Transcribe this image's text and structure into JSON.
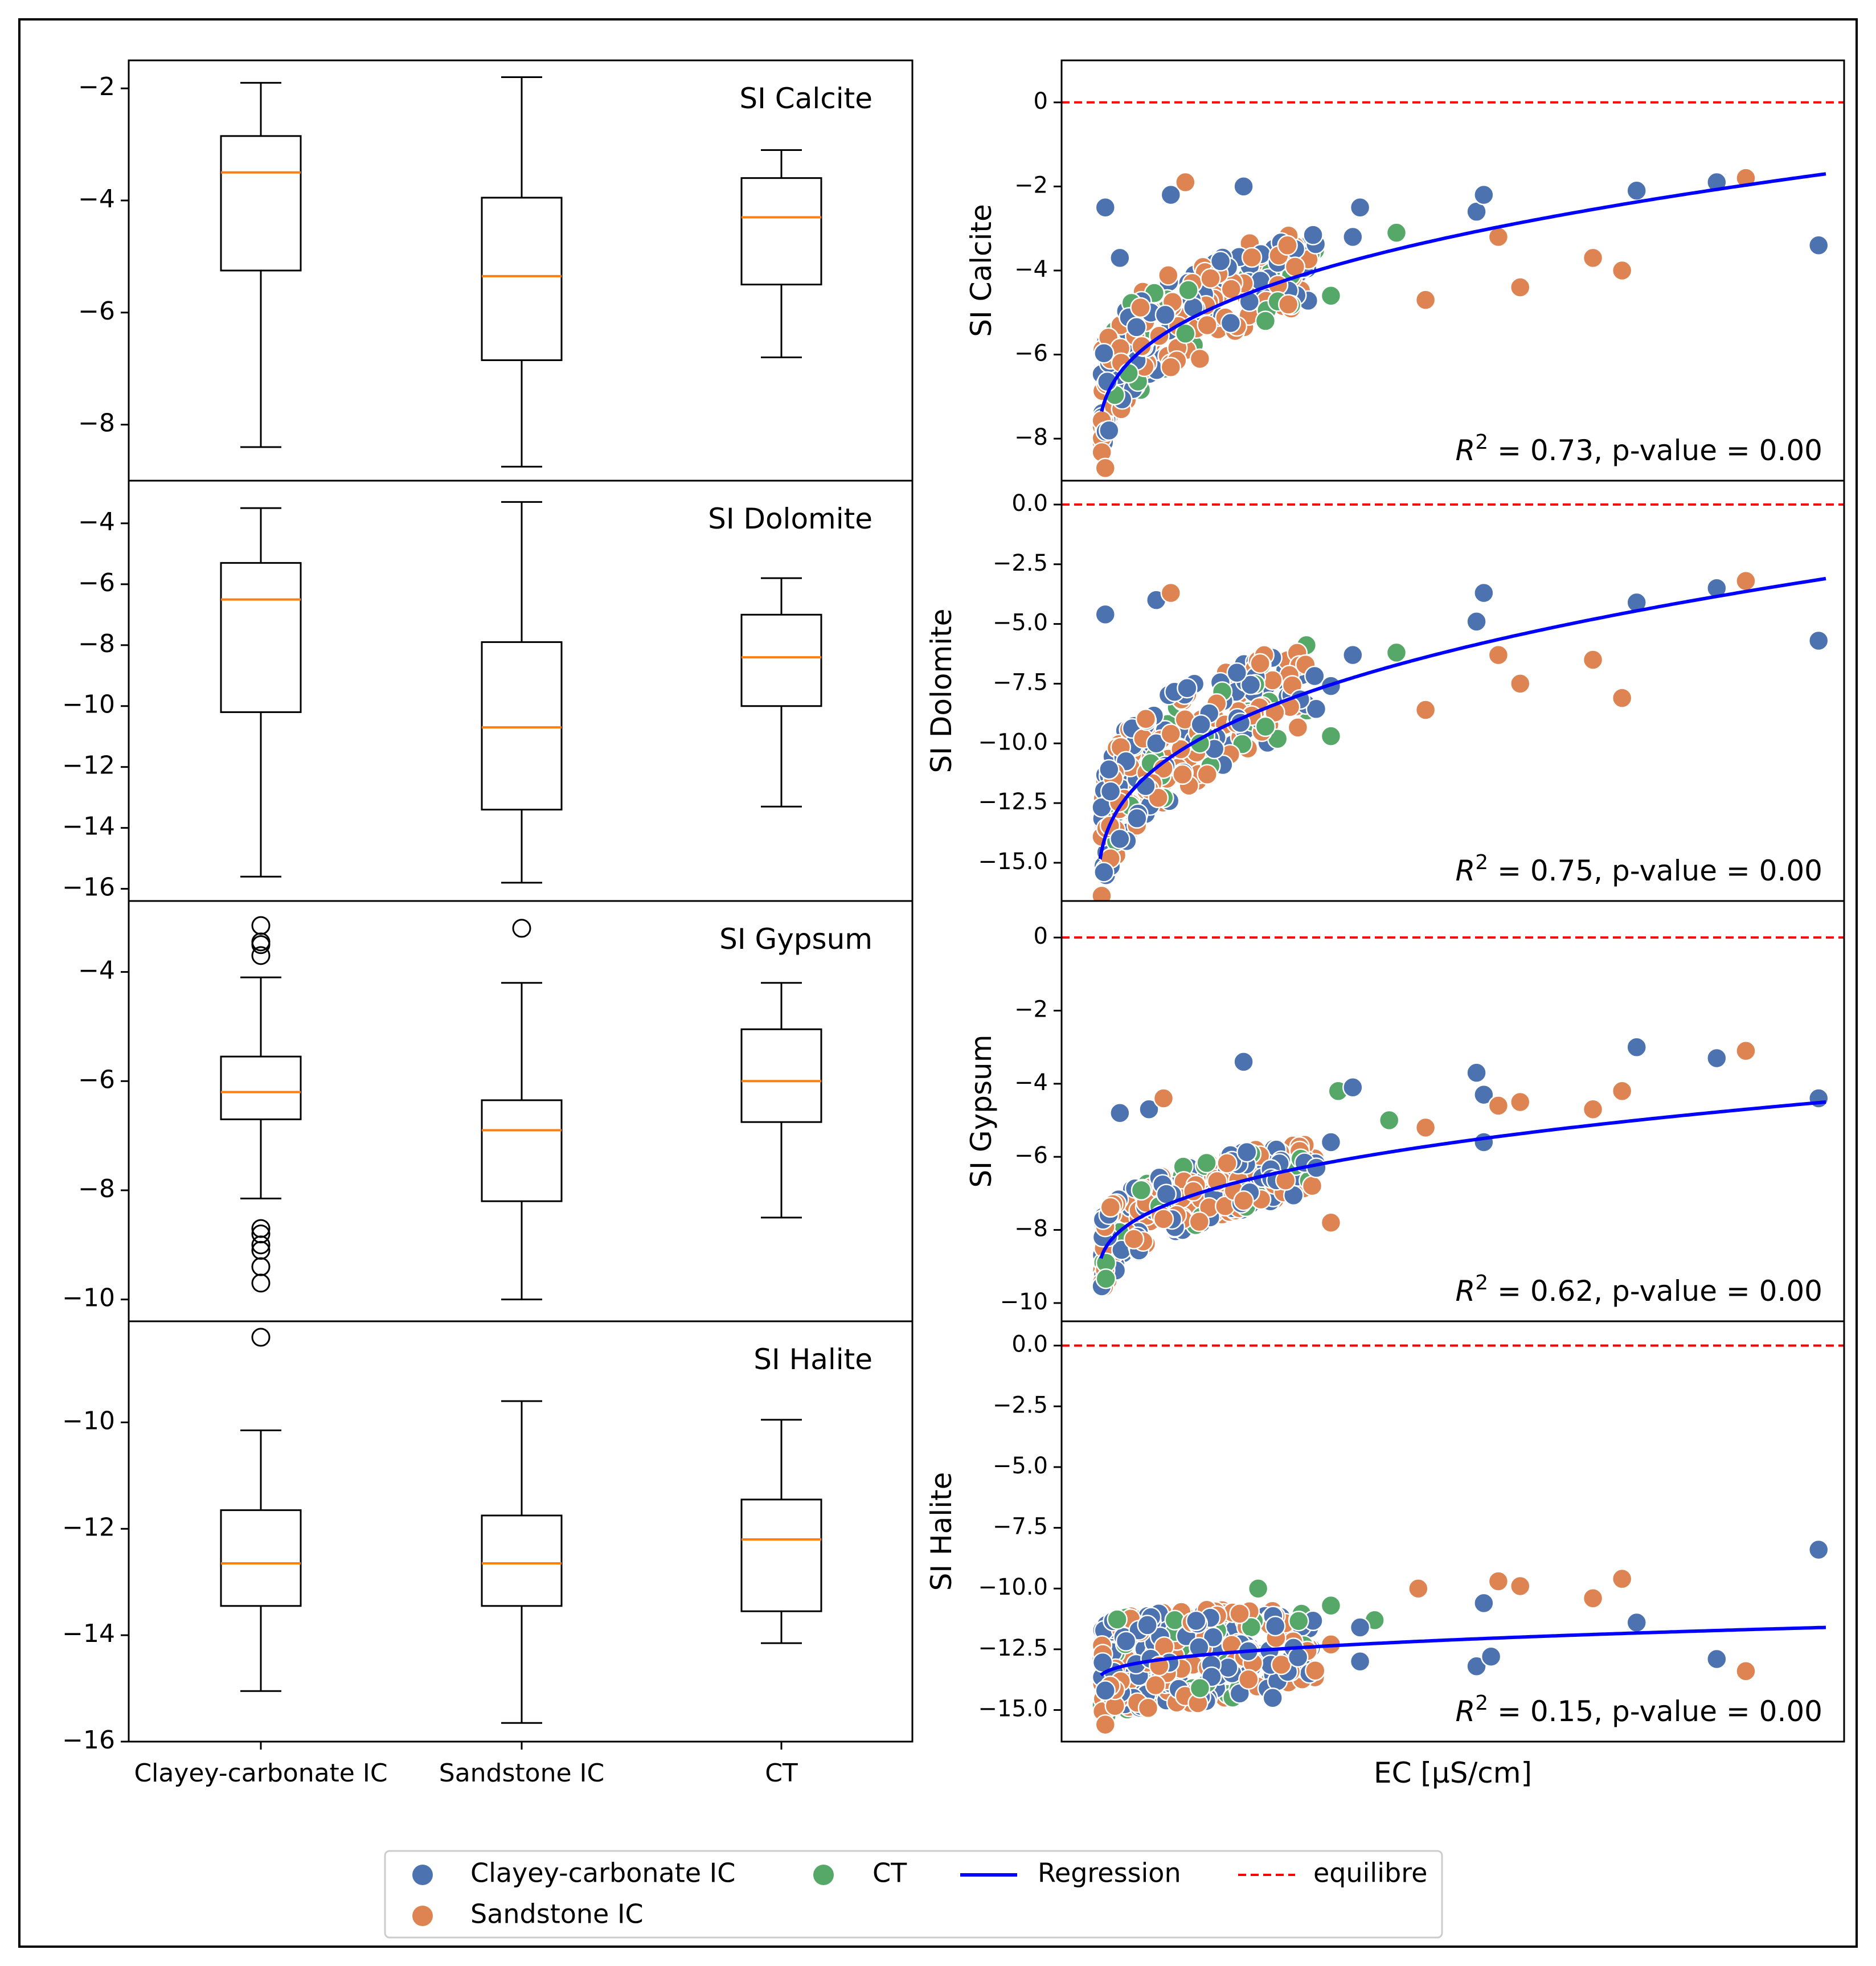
{
  "colors": {
    "clayey": "#4c72b0",
    "sandstone": "#dd8452",
    "ct": "#55a868",
    "regression": "#0000ff",
    "equilibre": "#ff0000",
    "median": "#ff7f0e"
  },
  "legend": {
    "clayey": "Clayey-carbonate IC",
    "ct": "CT",
    "regression": "Regression",
    "equilibre": "equilibre",
    "sandstone": "Sandstone IC"
  },
  "chart_data": [
    {
      "type": "box",
      "title": "SI Calcite",
      "categories": [
        "Clayey-carbonate IC",
        "Sandstone IC",
        "CT"
      ],
      "ylim": [
        -9.0,
        -1.5
      ],
      "yticks": [
        -8,
        -6,
        -4,
        -2
      ],
      "ytick_labels": [
        "−8",
        "−6",
        "−4",
        "−2"
      ],
      "boxes": [
        {
          "whislo": -8.4,
          "q1": -5.25,
          "med": -3.5,
          "q3": -2.85,
          "whishi": -1.9,
          "fliers": []
        },
        {
          "whislo": -8.75,
          "q1": -6.85,
          "med": -5.35,
          "q3": -3.95,
          "whishi": -1.8,
          "fliers": []
        },
        {
          "whislo": -6.8,
          "q1": -5.5,
          "med": -4.3,
          "q3": -3.6,
          "whishi": -3.1,
          "fliers": []
        }
      ]
    },
    {
      "type": "box",
      "title": "SI Dolomite",
      "categories": [
        "Clayey-carbonate IC",
        "Sandstone IC",
        "CT"
      ],
      "ylim": [
        -16.4,
        -2.6
      ],
      "yticks": [
        -16,
        -14,
        -12,
        -10,
        -8,
        -6,
        -4
      ],
      "ytick_labels": [
        "−16",
        "−14",
        "−12",
        "−10",
        "−8",
        "−6",
        "−4"
      ],
      "boxes": [
        {
          "whislo": -15.6,
          "q1": -10.2,
          "med": -6.5,
          "q3": -5.3,
          "whishi": -3.5,
          "fliers": []
        },
        {
          "whislo": -15.8,
          "q1": -13.4,
          "med": -10.7,
          "q3": -7.9,
          "whishi": -3.3,
          "fliers": []
        },
        {
          "whislo": -13.3,
          "q1": -10.0,
          "med": -8.4,
          "q3": -7.0,
          "whishi": -5.8,
          "fliers": []
        }
      ]
    },
    {
      "type": "box",
      "title": "SI Gypsum",
      "categories": [
        "Clayey-carbonate IC",
        "Sandstone IC",
        "CT"
      ],
      "ylim": [
        -10.4,
        -2.7
      ],
      "yticks": [
        -10,
        -8,
        -6,
        -4
      ],
      "ytick_labels": [
        "−10",
        "−8",
        "−6",
        "−4"
      ],
      "boxes": [
        {
          "whislo": -8.15,
          "q1": -6.7,
          "med": -6.2,
          "q3": -5.55,
          "whishi": -4.1,
          "fliers": [
            -3.15,
            -3.45,
            -3.5,
            -3.7,
            -8.7,
            -8.8,
            -9.0,
            -9.1,
            -9.4,
            -9.7
          ]
        },
        {
          "whislo": -10.0,
          "q1": -8.2,
          "med": -6.9,
          "q3": -6.35,
          "whishi": -4.2,
          "fliers": [
            -3.2
          ]
        },
        {
          "whislo": -8.5,
          "q1": -6.75,
          "med": -6.0,
          "q3": -5.05,
          "whishi": -4.2,
          "fliers": []
        }
      ]
    },
    {
      "type": "box",
      "title": "SI Halite",
      "categories": [
        "Clayey-carbonate IC",
        "Sandstone IC",
        "CT"
      ],
      "ylim": [
        -16.0,
        -8.1
      ],
      "yticks": [
        -16,
        -14,
        -12,
        -10
      ],
      "ytick_labels": [
        "−16",
        "−14",
        "−12",
        "−10"
      ],
      "xtick_labels": [
        "Clayey-carbonate IC",
        "Sandstone IC",
        "CT"
      ],
      "boxes": [
        {
          "whislo": -15.05,
          "q1": -13.45,
          "med": -12.65,
          "q3": -11.65,
          "whishi": -10.15,
          "fliers": [
            -8.4
          ]
        },
        {
          "whislo": -15.65,
          "q1": -13.45,
          "med": -12.65,
          "q3": -11.75,
          "whishi": -9.6,
          "fliers": []
        },
        {
          "whislo": -14.15,
          "q1": -13.55,
          "med": -12.2,
          "q3": -11.45,
          "whishi": -9.95,
          "fliers": []
        }
      ]
    },
    {
      "type": "scatter",
      "ylabel": "SI Calcite",
      "ylim": [
        -9.0,
        1.0
      ],
      "yticks": [
        -8,
        -6,
        -4,
        -2,
        0
      ],
      "ytick_labels": [
        "−8",
        "−6",
        "−4",
        "−2",
        "0"
      ],
      "annotation_prefix": "R",
      "annotation_sup": "2",
      "annotation_body": " = 0.73, p-value = 0.00",
      "regression": {
        "a": -8.4,
        "b": 6.7,
        "x_start": 0.005
      },
      "clouds": [
        {
          "x_min": 0.005,
          "x_max": 0.3,
          "y_offset_min": -1.0,
          "y_offset_max": 1.5,
          "count": 260
        }
      ],
      "points": [
        {
          "x": 0.01,
          "y": -2.5,
          "group": "clayey"
        },
        {
          "x": 0.01,
          "y": -8.7,
          "group": "sandstone"
        },
        {
          "x": 0.03,
          "y": -3.7,
          "group": "clayey"
        },
        {
          "x": 0.1,
          "y": -2.2,
          "group": "clayey"
        },
        {
          "x": 0.12,
          "y": -1.9,
          "group": "sandstone"
        },
        {
          "x": 0.2,
          "y": -2.0,
          "group": "clayey"
        },
        {
          "x": 0.06,
          "y": -5.8,
          "group": "sandstone"
        },
        {
          "x": 0.12,
          "y": -5.5,
          "group": "ct"
        },
        {
          "x": 0.14,
          "y": -6.1,
          "group": "sandstone"
        },
        {
          "x": 0.1,
          "y": -6.3,
          "group": "sandstone"
        },
        {
          "x": 0.23,
          "y": -5.2,
          "group": "ct"
        },
        {
          "x": 0.15,
          "y": -5.3,
          "group": "sandstone"
        },
        {
          "x": 0.36,
          "y": -2.5,
          "group": "clayey"
        },
        {
          "x": 0.35,
          "y": -3.2,
          "group": "clayey"
        },
        {
          "x": 0.41,
          "y": -3.1,
          "group": "ct"
        },
        {
          "x": 0.32,
          "y": -4.6,
          "group": "ct"
        },
        {
          "x": 0.45,
          "y": -4.7,
          "group": "sandstone"
        },
        {
          "x": 0.52,
          "y": -2.6,
          "group": "clayey"
        },
        {
          "x": 0.53,
          "y": -2.2,
          "group": "clayey"
        },
        {
          "x": 0.55,
          "y": -3.2,
          "group": "sandstone"
        },
        {
          "x": 0.58,
          "y": -4.4,
          "group": "sandstone"
        },
        {
          "x": 0.68,
          "y": -3.7,
          "group": "sandstone"
        },
        {
          "x": 0.72,
          "y": -4.0,
          "group": "sandstone"
        },
        {
          "x": 0.74,
          "y": -2.1,
          "group": "clayey"
        },
        {
          "x": 0.85,
          "y": -1.9,
          "group": "clayey"
        },
        {
          "x": 0.89,
          "y": -1.8,
          "group": "sandstone"
        },
        {
          "x": 0.99,
          "y": -3.4,
          "group": "clayey"
        }
      ]
    },
    {
      "type": "scatter",
      "ylabel": "SI Dolomite",
      "ylim": [
        -16.6,
        1.0
      ],
      "yticks": [
        -15.0,
        -12.5,
        -10.0,
        -7.5,
        -5.0,
        -2.5,
        0.0
      ],
      "ytick_labels": [
        "−15.0",
        "−12.5",
        "−10.0",
        "−7.5",
        "−5.0",
        "−2.5",
        "0.0"
      ],
      "annotation_prefix": "R",
      "annotation_sup": "2",
      "annotation_body": " = 0.75, p-value = 0.00",
      "regression": {
        "a": -16.6,
        "b": 13.5,
        "x_start": 0.003
      },
      "clouds": [
        {
          "x_min": 0.005,
          "x_max": 0.3,
          "y_offset_min": -2.0,
          "y_offset_max": 3.0,
          "count": 260
        }
      ],
      "points": [
        {
          "x": 0.01,
          "y": -4.6,
          "group": "clayey"
        },
        {
          "x": 0.08,
          "y": -4.0,
          "group": "clayey"
        },
        {
          "x": 0.1,
          "y": -3.7,
          "group": "sandstone"
        },
        {
          "x": 0.03,
          "y": -14.0,
          "group": "clayey"
        },
        {
          "x": 0.08,
          "y": -10.0,
          "group": "clayey"
        },
        {
          "x": 0.1,
          "y": -9.6,
          "group": "sandstone"
        },
        {
          "x": 0.14,
          "y": -10.0,
          "group": "ct"
        },
        {
          "x": 0.15,
          "y": -11.3,
          "group": "sandstone"
        },
        {
          "x": 0.23,
          "y": -9.3,
          "group": "ct"
        },
        {
          "x": 0.32,
          "y": -7.6,
          "group": "clayey"
        },
        {
          "x": 0.32,
          "y": -9.7,
          "group": "ct"
        },
        {
          "x": 0.35,
          "y": -6.3,
          "group": "clayey"
        },
        {
          "x": 0.41,
          "y": -6.2,
          "group": "ct"
        },
        {
          "x": 0.45,
          "y": -8.6,
          "group": "sandstone"
        },
        {
          "x": 0.52,
          "y": -4.9,
          "group": "clayey"
        },
        {
          "x": 0.53,
          "y": -3.7,
          "group": "clayey"
        },
        {
          "x": 0.55,
          "y": -6.3,
          "group": "sandstone"
        },
        {
          "x": 0.58,
          "y": -7.5,
          "group": "sandstone"
        },
        {
          "x": 0.68,
          "y": -6.5,
          "group": "sandstone"
        },
        {
          "x": 0.72,
          "y": -8.1,
          "group": "sandstone"
        },
        {
          "x": 0.74,
          "y": -4.1,
          "group": "clayey"
        },
        {
          "x": 0.85,
          "y": -3.5,
          "group": "clayey"
        },
        {
          "x": 0.89,
          "y": -3.2,
          "group": "sandstone"
        },
        {
          "x": 0.99,
          "y": -5.7,
          "group": "clayey"
        }
      ]
    },
    {
      "type": "scatter",
      "ylabel": "SI Gypsum",
      "ylim": [
        -10.5,
        1.0
      ],
      "yticks": [
        -10,
        -8,
        -6,
        -4,
        -2,
        0
      ],
      "ytick_labels": [
        "−10",
        "−8",
        "−6",
        "−4",
        "−2",
        "0"
      ],
      "annotation_prefix": "R",
      "annotation_sup": "2",
      "annotation_body": " = 0.62, p-value = 0.00",
      "regression": {
        "a": -9.5,
        "b": 5.0,
        "x_start": 0.004
      },
      "clouds": [
        {
          "x_min": 0.005,
          "x_max": 0.3,
          "y_offset_min": -1.0,
          "y_offset_max": 1.0,
          "count": 260
        }
      ],
      "points": [
        {
          "x": 0.03,
          "y": -4.8,
          "group": "clayey"
        },
        {
          "x": 0.07,
          "y": -4.7,
          "group": "clayey"
        },
        {
          "x": 0.09,
          "y": -4.4,
          "group": "sandstone"
        },
        {
          "x": 0.09,
          "y": -7.7,
          "group": "sandstone"
        },
        {
          "x": 0.2,
          "y": -7.2,
          "group": "sandstone"
        },
        {
          "x": 0.2,
          "y": -3.4,
          "group": "clayey"
        },
        {
          "x": 0.3,
          "y": -6.3,
          "group": "clayey"
        },
        {
          "x": 0.32,
          "y": -5.6,
          "group": "clayey"
        },
        {
          "x": 0.32,
          "y": -7.8,
          "group": "sandstone"
        },
        {
          "x": 0.33,
          "y": -4.2,
          "group": "ct"
        },
        {
          "x": 0.35,
          "y": -4.1,
          "group": "clayey"
        },
        {
          "x": 0.4,
          "y": -5.0,
          "group": "ct"
        },
        {
          "x": 0.45,
          "y": -5.2,
          "group": "sandstone"
        },
        {
          "x": 0.52,
          "y": -3.7,
          "group": "clayey"
        },
        {
          "x": 0.53,
          "y": -4.3,
          "group": "clayey"
        },
        {
          "x": 0.53,
          "y": -5.6,
          "group": "clayey"
        },
        {
          "x": 0.55,
          "y": -4.6,
          "group": "sandstone"
        },
        {
          "x": 0.58,
          "y": -4.5,
          "group": "sandstone"
        },
        {
          "x": 0.68,
          "y": -4.7,
          "group": "sandstone"
        },
        {
          "x": 0.72,
          "y": -4.2,
          "group": "sandstone"
        },
        {
          "x": 0.74,
          "y": -3.0,
          "group": "clayey"
        },
        {
          "x": 0.85,
          "y": -3.3,
          "group": "clayey"
        },
        {
          "x": 0.89,
          "y": -3.1,
          "group": "sandstone"
        },
        {
          "x": 0.99,
          "y": -4.4,
          "group": "clayey"
        }
      ]
    },
    {
      "type": "scatter",
      "ylabel": "SI Halite",
      "ylim": [
        -16.3,
        1.0
      ],
      "yticks": [
        -15.0,
        -12.5,
        -10.0,
        -7.5,
        -5.0,
        -2.5,
        0.0
      ],
      "ytick_labels": [
        "−15.0",
        "−12.5",
        "−10.0",
        "−7.5",
        "−5.0",
        "−2.5",
        "0.0"
      ],
      "xlabel": "EC [μS/cm]",
      "annotation_prefix": "R",
      "annotation_sup": "2",
      "annotation_body": " = 0.15, p-value = 0.00",
      "regression": {
        "a": -13.9,
        "b": 2.3,
        "x_start": 0.004
      },
      "clouds": [
        {
          "x_min": 0.005,
          "x_max": 0.3,
          "y_offset_min": -2.3,
          "y_offset_max": 2.2,
          "count": 300
        }
      ],
      "points": [
        {
          "x": 0.01,
          "y": -15.6,
          "group": "sandstone"
        },
        {
          "x": 0.01,
          "y": -14.2,
          "group": "clayey"
        },
        {
          "x": 0.14,
          "y": -14.1,
          "group": "ct"
        },
        {
          "x": 0.24,
          "y": -14.5,
          "group": "clayey"
        },
        {
          "x": 0.22,
          "y": -10.0,
          "group": "ct"
        },
        {
          "x": 0.32,
          "y": -10.7,
          "group": "ct"
        },
        {
          "x": 0.38,
          "y": -11.3,
          "group": "ct"
        },
        {
          "x": 0.36,
          "y": -11.6,
          "group": "clayey"
        },
        {
          "x": 0.36,
          "y": -13.0,
          "group": "clayey"
        },
        {
          "x": 0.32,
          "y": -12.3,
          "group": "sandstone"
        },
        {
          "x": 0.44,
          "y": -10.0,
          "group": "sandstone"
        },
        {
          "x": 0.52,
          "y": -13.2,
          "group": "clayey"
        },
        {
          "x": 0.53,
          "y": -10.6,
          "group": "clayey"
        },
        {
          "x": 0.54,
          "y": -12.8,
          "group": "clayey"
        },
        {
          "x": 0.55,
          "y": -9.7,
          "group": "sandstone"
        },
        {
          "x": 0.58,
          "y": -9.9,
          "group": "sandstone"
        },
        {
          "x": 0.68,
          "y": -10.4,
          "group": "sandstone"
        },
        {
          "x": 0.72,
          "y": -9.6,
          "group": "sandstone"
        },
        {
          "x": 0.74,
          "y": -11.4,
          "group": "clayey"
        },
        {
          "x": 0.85,
          "y": -12.9,
          "group": "clayey"
        },
        {
          "x": 0.89,
          "y": -13.4,
          "group": "sandstone"
        },
        {
          "x": 0.99,
          "y": -8.4,
          "group": "clayey"
        }
      ]
    }
  ]
}
